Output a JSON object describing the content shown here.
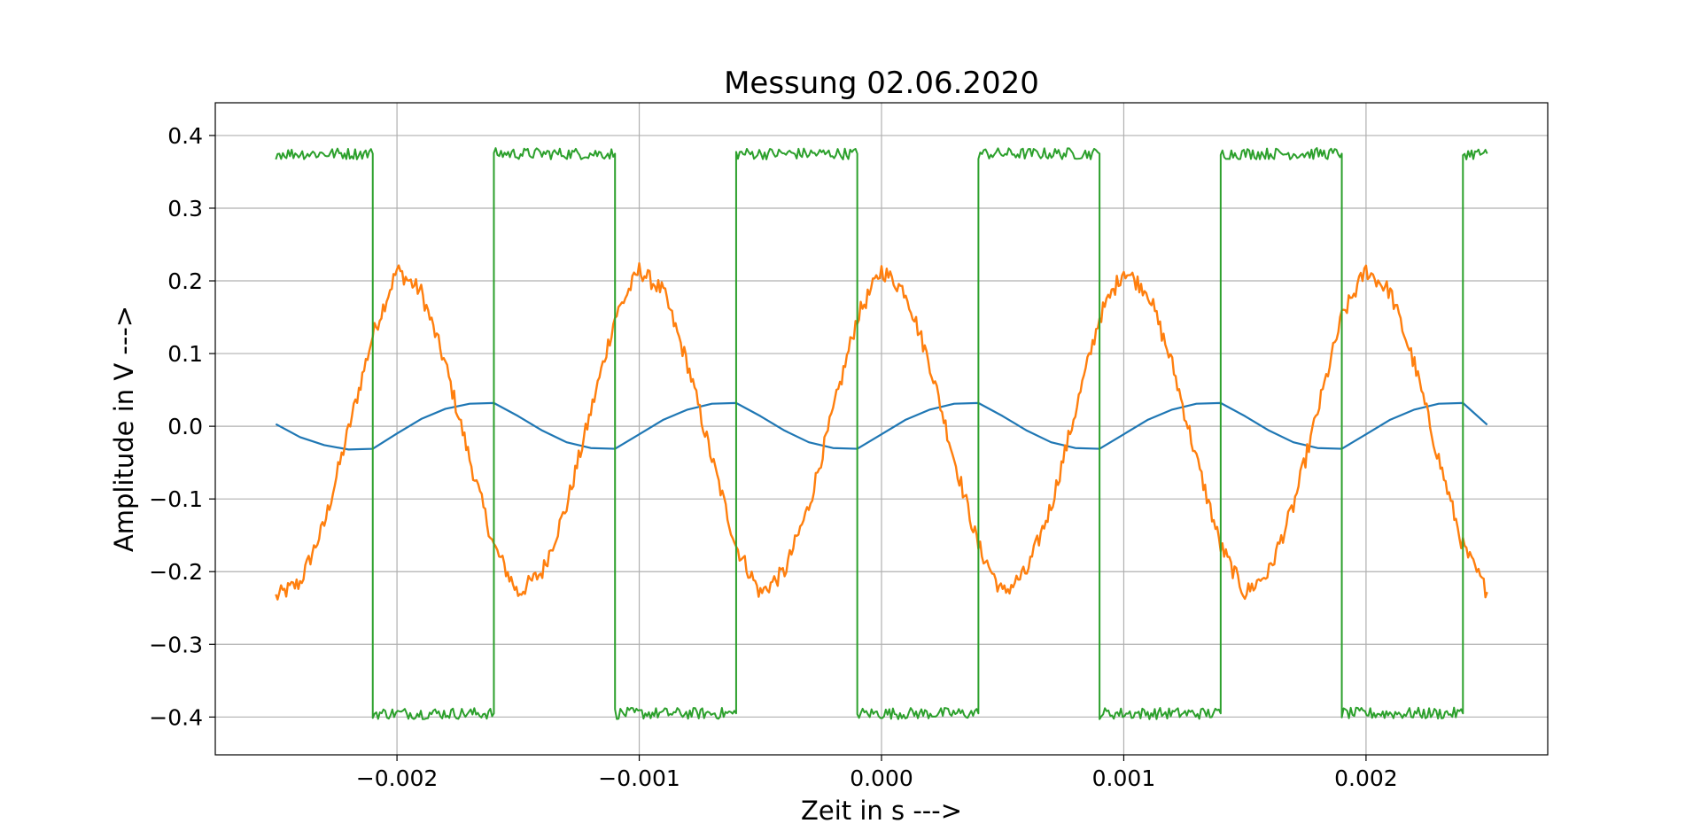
{
  "chart_data": {
    "type": "line",
    "title": "Messung 02.06.2020",
    "xlabel": "Zeit in s --->",
    "ylabel": "Amplitude in V --->",
    "xlim": [
      -0.00275,
      0.00275
    ],
    "ylim": [
      -0.452,
      0.445
    ],
    "xticks": [
      -0.002,
      -0.001,
      0.0,
      0.001,
      0.002
    ],
    "xtick_labels": [
      "−0.002",
      "−0.001",
      "0.000",
      "0.001",
      "0.002"
    ],
    "yticks": [
      -0.4,
      -0.3,
      -0.2,
      -0.1,
      0.0,
      0.1,
      0.2,
      0.3,
      0.4
    ],
    "ytick_labels": [
      "−0.4",
      "−0.3",
      "−0.2",
      "−0.1",
      "0.0",
      "0.1",
      "0.2",
      "0.3",
      "0.4"
    ],
    "grid": true,
    "legend": false,
    "series": [
      {
        "color": "#1f77b4",
        "line_width": 2.2,
        "noise": 0,
        "x": [
          -0.0025,
          -0.0024,
          -0.0023,
          -0.0022,
          -0.0021,
          -0.002,
          -0.0019,
          -0.0018,
          -0.0017,
          -0.0016,
          -0.0015,
          -0.0014,
          -0.0013,
          -0.0012,
          -0.0011,
          -0.001,
          -0.0009,
          -0.0008,
          -0.0007,
          -0.0006,
          -0.0005,
          -0.0004,
          -0.0003,
          -0.0002,
          -0.0001,
          0.0,
          0.0001,
          0.0002,
          0.0003,
          0.0004,
          0.0005,
          0.0006,
          0.0007,
          0.0008,
          0.0009,
          0.001,
          0.0011,
          0.0012,
          0.0013,
          0.0014,
          0.0015,
          0.0016,
          0.0017,
          0.0018,
          0.0019,
          0.002,
          0.0021,
          0.0022,
          0.0023,
          0.0024,
          0.0025
        ],
        "y": [
          0.003,
          -0.015,
          -0.026,
          -0.032,
          -0.031,
          -0.01,
          0.01,
          0.024,
          0.031,
          0.032,
          0.014,
          -0.006,
          -0.022,
          -0.03,
          -0.031,
          -0.011,
          0.009,
          0.023,
          0.031,
          0.032,
          0.014,
          -0.006,
          -0.022,
          -0.03,
          -0.031,
          -0.011,
          0.009,
          0.023,
          0.031,
          0.032,
          0.014,
          -0.006,
          -0.022,
          -0.03,
          -0.031,
          -0.011,
          0.009,
          0.023,
          0.031,
          0.032,
          0.014,
          -0.006,
          -0.022,
          -0.03,
          -0.031,
          -0.011,
          0.009,
          0.023,
          0.031,
          0.032,
          0.002
        ]
      },
      {
        "color": "#ff7f0e",
        "line_width": 2.4,
        "noise": 0.012,
        "x": [
          -0.0025,
          -0.0024,
          -0.0023,
          -0.0022,
          -0.0021,
          -0.002,
          -0.0019,
          -0.0018,
          -0.0017,
          -0.0016,
          -0.0015,
          -0.0014,
          -0.0013,
          -0.0012,
          -0.0011,
          -0.001,
          -0.0009,
          -0.0008,
          -0.0007,
          -0.0006,
          -0.0005,
          -0.0004,
          -0.0003,
          -0.0002,
          -0.0001,
          0.0,
          0.0001,
          0.0002,
          0.0003,
          0.0004,
          0.0005,
          0.0006,
          0.0007,
          0.0008,
          0.0009,
          0.001,
          0.0011,
          0.0012,
          0.0013,
          0.0014,
          0.0015,
          0.0016,
          0.0017,
          0.0018,
          0.0019,
          0.002,
          0.0021,
          0.0022,
          0.0023,
          0.0024,
          0.0025
        ],
        "y": [
          -0.235,
          -0.215,
          -0.135,
          -0.005,
          0.125,
          0.215,
          0.185,
          0.085,
          -0.045,
          -0.165,
          -0.23,
          -0.2,
          -0.11,
          0.02,
          0.15,
          0.215,
          0.185,
          0.085,
          -0.045,
          -0.165,
          -0.23,
          -0.2,
          -0.11,
          0.02,
          0.15,
          0.215,
          0.185,
          0.085,
          -0.045,
          -0.165,
          -0.23,
          -0.2,
          -0.11,
          0.02,
          0.15,
          0.215,
          0.185,
          0.085,
          -0.045,
          -0.165,
          -0.23,
          -0.2,
          -0.11,
          0.02,
          0.15,
          0.215,
          0.185,
          0.085,
          -0.045,
          -0.165,
          -0.228
        ]
      },
      {
        "color": "#2ca02c",
        "line_width": 2.0,
        "noise": 0.008,
        "x": [
          -0.0025,
          -0.0021,
          -0.0021,
          -0.0016,
          -0.0016,
          -0.0011,
          -0.0011,
          -0.0006,
          -0.0006,
          -0.0001,
          -0.0001,
          0.0004,
          0.0004,
          0.0009,
          0.0009,
          0.0014,
          0.0014,
          0.0019,
          0.0019,
          0.0024,
          0.0024,
          0.0025
        ],
        "y": [
          0.375,
          0.375,
          -0.395,
          -0.395,
          0.375,
          0.375,
          -0.395,
          -0.395,
          0.375,
          0.375,
          -0.395,
          -0.395,
          0.375,
          0.375,
          -0.395,
          -0.395,
          0.375,
          0.375,
          -0.395,
          -0.395,
          0.375,
          0.375
        ]
      }
    ]
  }
}
